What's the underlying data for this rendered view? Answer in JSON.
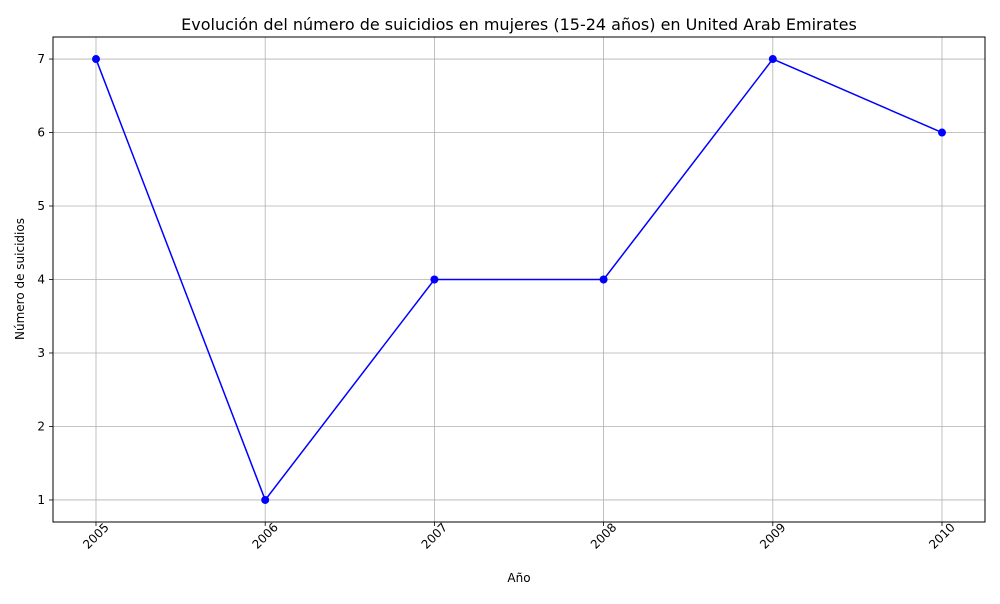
{
  "chart_data": {
    "type": "line",
    "title": "Evolución del número de suicidios en mujeres (15-24 años) en United Arab Emirates",
    "xlabel": "Año",
    "ylabel": "Número de suicidios",
    "x": [
      "2005",
      "2006",
      "2007",
      "2008",
      "2009",
      "2010"
    ],
    "series": [
      {
        "values": [
          7,
          1,
          4,
          4,
          7,
          6
        ],
        "color": "#0000ff",
        "marker": "circle"
      }
    ],
    "yticks": [
      "1",
      "2",
      "3",
      "4",
      "5",
      "6",
      "7"
    ],
    "ylim": [
      0.7,
      7.3
    ],
    "grid": true,
    "legend": "none",
    "x_tick_rotation_deg": 45
  }
}
